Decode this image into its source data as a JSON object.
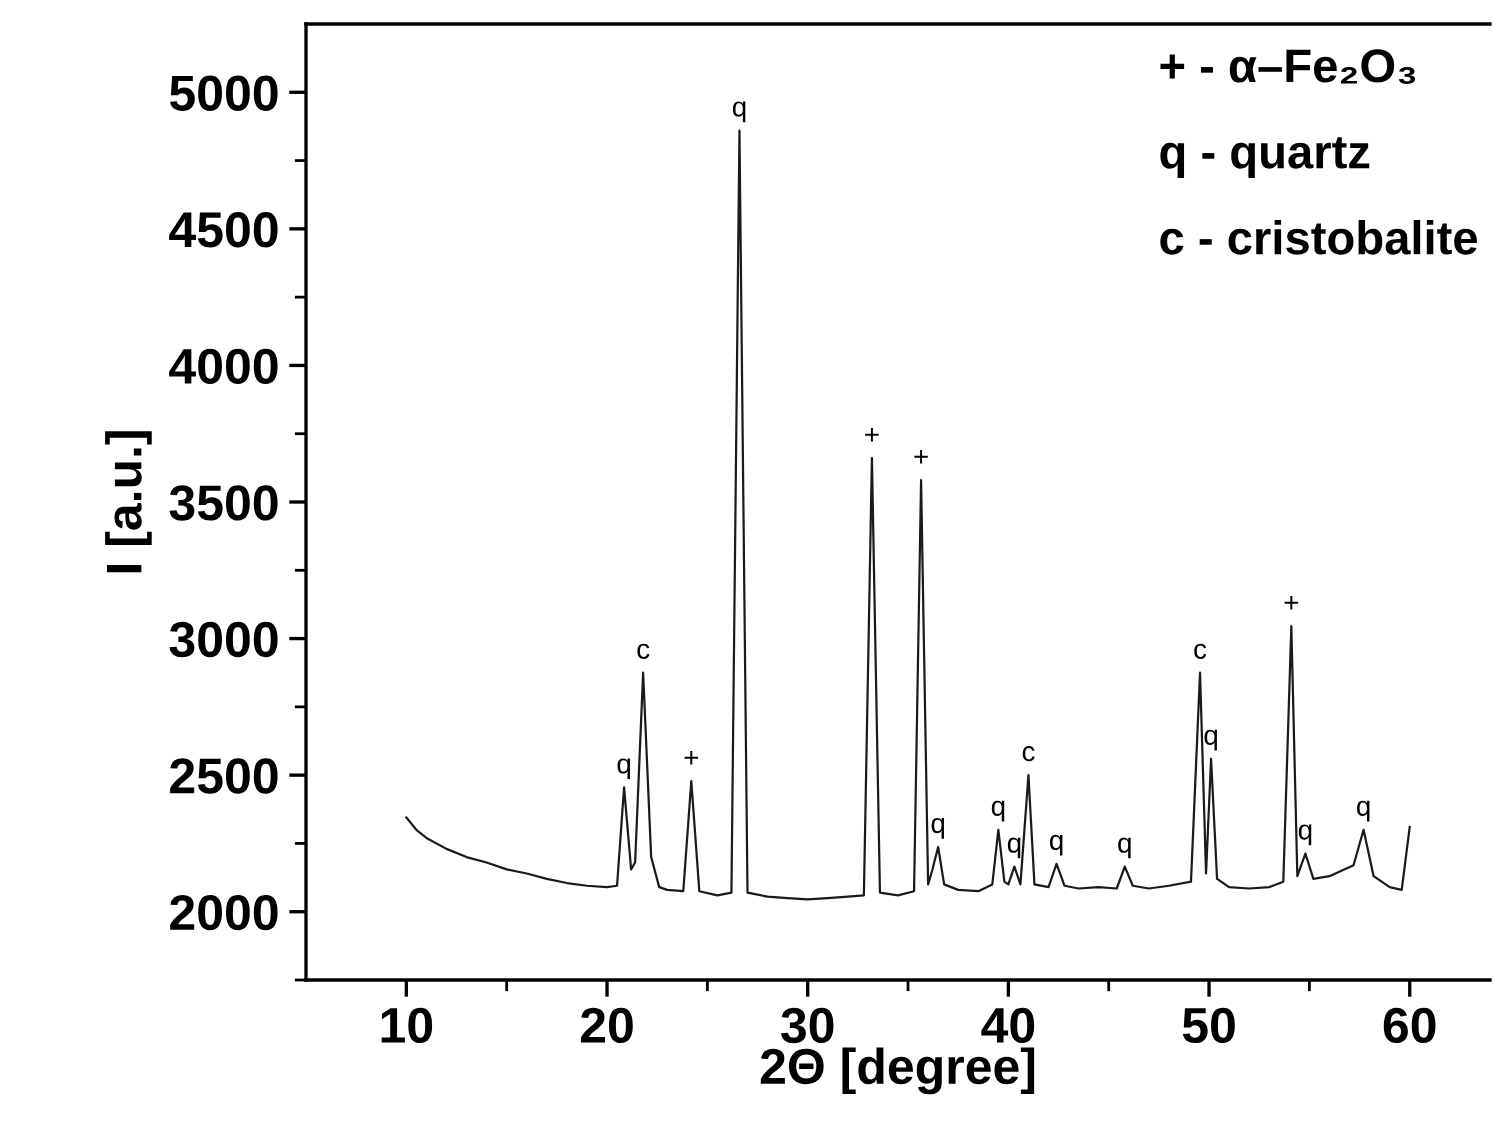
{
  "chart_data": {
    "type": "line",
    "xlabel": "2Θ [degree]",
    "ylabel": "I [a.u.]",
    "xlim": [
      5,
      64
    ],
    "ylim": [
      1750,
      5250
    ],
    "xticks": [
      10,
      {
        "value": 15,
        "label": null
      },
      20,
      {
        "value": 25,
        "label": null
      },
      30,
      {
        "value": 35,
        "label": null
      },
      40,
      {
        "value": 45,
        "label": null
      },
      50,
      {
        "value": 55,
        "label": null
      },
      60
    ],
    "yticks": [
      {
        "value": 1750,
        "label": null
      },
      2000,
      {
        "value": 2250,
        "label": null
      },
      2500,
      {
        "value": 2750,
        "label": null
      },
      3000,
      {
        "value": 3250,
        "label": null
      },
      3500,
      {
        "value": 3750,
        "label": null
      },
      4000,
      {
        "value": 4250,
        "label": null
      },
      4500,
      {
        "value": 4750,
        "label": null
      },
      5000
    ],
    "grid": false,
    "marker": "none",
    "line_style": "solid",
    "series": [
      {
        "color": "#1a1a1a",
        "x": [
          10,
          10.5,
          11,
          12,
          13,
          14,
          15,
          16,
          17,
          18,
          19,
          20,
          20.5,
          20.85,
          21.2,
          21.4,
          21.8,
          22.2,
          22.6,
          23,
          23.8,
          24.2,
          24.6,
          25.5,
          26.2,
          26.6,
          27.0,
          28,
          29,
          30,
          31,
          32,
          32.8,
          33.2,
          33.6,
          34.5,
          35.3,
          35.65,
          36.0,
          36.2,
          36.5,
          36.8,
          37.5,
          38.5,
          39.2,
          39.5,
          39.8,
          40.0,
          40.3,
          40.6,
          41.0,
          41.3,
          42.0,
          42.4,
          42.8,
          43.5,
          44.5,
          45.4,
          45.8,
          46.2,
          47,
          48,
          49.1,
          49.55,
          49.85,
          50.1,
          50.4,
          51,
          52,
          53,
          53.7,
          54.1,
          54.4,
          54.8,
          55.2,
          56,
          57.2,
          57.7,
          58.2,
          59,
          59.6,
          60.0
        ],
        "values": [
          2345,
          2300,
          2270,
          2230,
          2200,
          2180,
          2155,
          2140,
          2120,
          2105,
          2095,
          2090,
          2095,
          2455,
          2155,
          2180,
          2875,
          2200,
          2090,
          2080,
          2075,
          2478,
          2075,
          2060,
          2070,
          4860,
          2070,
          2055,
          2050,
          2045,
          2050,
          2055,
          2060,
          3661,
          2070,
          2060,
          2075,
          3580,
          2100,
          2150,
          2237,
          2100,
          2080,
          2075,
          2100,
          2300,
          2110,
          2100,
          2165,
          2100,
          2500,
          2100,
          2090,
          2175,
          2095,
          2085,
          2090,
          2085,
          2165,
          2095,
          2085,
          2095,
          2110,
          2875,
          2140,
          2560,
          2120,
          2090,
          2085,
          2090,
          2110,
          3046,
          2130,
          2213,
          2120,
          2130,
          2170,
          2300,
          2130,
          2090,
          2080,
          2310
        ]
      }
    ],
    "annotations": [
      {
        "text": "q",
        "x": 20.85,
        "y": 2455
      },
      {
        "text": "c",
        "x": 21.8,
        "y": 2875
      },
      {
        "text": "+",
        "x": 24.2,
        "y": 2478
      },
      {
        "text": "q",
        "x": 26.6,
        "y": 4860
      },
      {
        "text": "+",
        "x": 33.2,
        "y": 3661
      },
      {
        "text": "+",
        "x": 35.65,
        "y": 3580
      },
      {
        "text": "q",
        "x": 36.5,
        "y": 2237
      },
      {
        "text": "q",
        "x": 39.5,
        "y": 2300
      },
      {
        "text": "q",
        "x": 40.3,
        "y": 2165
      },
      {
        "text": "c",
        "x": 41.0,
        "y": 2500
      },
      {
        "text": "q",
        "x": 42.4,
        "y": 2175
      },
      {
        "text": "q",
        "x": 45.8,
        "y": 2165
      },
      {
        "text": "c",
        "x": 49.55,
        "y": 2875
      },
      {
        "text": "q",
        "x": 50.1,
        "y": 2560
      },
      {
        "text": "+",
        "x": 54.1,
        "y": 3046
      },
      {
        "text": "q",
        "x": 54.8,
        "y": 2213
      },
      {
        "text": "q",
        "x": 57.7,
        "y": 2300
      },
      "+ - α–Fe₂O₃",
      "q - quartz",
      "c - cristobalite"
    ]
  }
}
